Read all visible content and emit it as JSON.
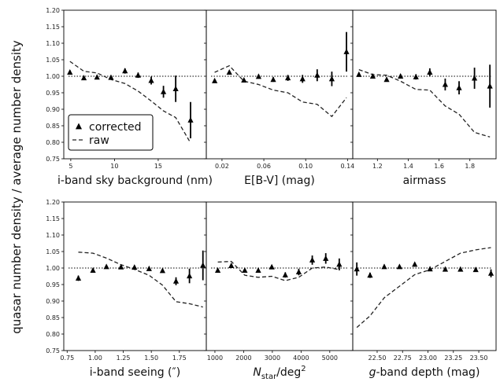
{
  "figure": {
    "ylabel": "quasar number density / average number density",
    "legend": {
      "corrected": "corrected",
      "raw": "raw"
    }
  },
  "chart_data": [
    {
      "id": "p1",
      "type": "scatter",
      "xlabel": "i-band sky background (nm)",
      "xlim": [
        4.2,
        20.5
      ],
      "ylim": [
        0.75,
        1.2
      ],
      "xticks": [
        5,
        10,
        15
      ],
      "grid": false,
      "reference_line": 1.0,
      "series": [
        {
          "name": "corrected",
          "style": "markers-errorbars",
          "x": [
            4.9,
            6.5,
            8.0,
            9.6,
            11.2,
            12.7,
            14.2,
            15.6,
            17.0,
            18.7
          ],
          "y": [
            1.012,
            0.995,
            0.997,
            0.996,
            1.016,
            1.003,
            0.987,
            0.953,
            0.962,
            0.867
          ],
          "err": [
            0.006,
            0.005,
            0.005,
            0.006,
            0.008,
            0.008,
            0.012,
            0.018,
            0.04,
            0.055
          ]
        },
        {
          "name": "raw",
          "style": "dashed",
          "x": [
            4.9,
            6.5,
            8.0,
            9.6,
            11.2,
            12.7,
            14.2,
            15.6,
            17.0,
            18.7
          ],
          "y": [
            1.045,
            1.015,
            1.01,
            0.99,
            0.978,
            0.955,
            0.925,
            0.895,
            0.875,
            0.798
          ]
        }
      ]
    },
    {
      "id": "p2",
      "type": "scatter",
      "xlabel": "E[B-V] (mag)",
      "xlim": [
        0.005,
        0.145
      ],
      "ylim": [
        0.75,
        1.2
      ],
      "xticks": [
        0.02,
        0.06,
        0.1,
        0.14
      ],
      "grid": false,
      "reference_line": 1.0,
      "series": [
        {
          "name": "corrected",
          "style": "markers-errorbars",
          "x": [
            0.013,
            0.027,
            0.041,
            0.055,
            0.069,
            0.083,
            0.097,
            0.111,
            0.125,
            0.139
          ],
          "y": [
            0.986,
            1.012,
            0.988,
            0.999,
            0.99,
            0.995,
            0.992,
            1.003,
            0.992,
            1.074
          ],
          "err": [
            0.005,
            0.005,
            0.005,
            0.006,
            0.007,
            0.009,
            0.012,
            0.018,
            0.022,
            0.06
          ]
        },
        {
          "name": "raw",
          "style": "dashed",
          "x": [
            0.013,
            0.027,
            0.041,
            0.055,
            0.069,
            0.083,
            0.097,
            0.111,
            0.125,
            0.139
          ],
          "y": [
            1.012,
            1.032,
            0.985,
            0.975,
            0.958,
            0.95,
            0.922,
            0.915,
            0.878,
            0.935
          ]
        }
      ]
    },
    {
      "id": "p3",
      "type": "scatter",
      "xlabel": "airmass",
      "xlim": [
        1.04,
        1.97
      ],
      "ylim": [
        0.75,
        1.2
      ],
      "xticks": [
        1.2,
        1.4,
        1.6,
        1.8
      ],
      "grid": false,
      "reference_line": 1.0,
      "series": [
        {
          "name": "corrected",
          "style": "markers-errorbars",
          "x": [
            1.08,
            1.17,
            1.26,
            1.35,
            1.45,
            1.54,
            1.64,
            1.73,
            1.83,
            1.93
          ],
          "y": [
            1.005,
            1.0,
            0.99,
            1.0,
            0.998,
            1.012,
            0.975,
            0.965,
            0.994,
            0.97
          ],
          "err": [
            0.006,
            0.005,
            0.006,
            0.006,
            0.008,
            0.012,
            0.018,
            0.02,
            0.032,
            0.065
          ]
        },
        {
          "name": "raw",
          "style": "dashed",
          "x": [
            1.08,
            1.17,
            1.26,
            1.35,
            1.45,
            1.54,
            1.64,
            1.73,
            1.83,
            1.93
          ],
          "y": [
            1.02,
            1.005,
            1.003,
            0.985,
            0.96,
            0.958,
            0.91,
            0.885,
            0.83,
            0.816
          ]
        }
      ]
    },
    {
      "id": "p4",
      "type": "scatter",
      "xlabel": "i-band seeing (″)",
      "xlim": [
        0.72,
        1.99
      ],
      "ylim": [
        0.75,
        1.2
      ],
      "xticks": [
        0.75,
        1.0,
        1.25,
        1.5,
        1.75
      ],
      "grid": false,
      "reference_line": 1.0,
      "series": [
        {
          "name": "corrected",
          "style": "markers-errorbars",
          "x": [
            0.85,
            0.98,
            1.1,
            1.23,
            1.35,
            1.48,
            1.6,
            1.72,
            1.84,
            1.96
          ],
          "y": [
            0.969,
            0.993,
            1.004,
            1.003,
            1.002,
            0.998,
            0.992,
            0.96,
            0.976,
            1.008
          ],
          "err": [
            0.008,
            0.005,
            0.004,
            0.004,
            0.004,
            0.004,
            0.006,
            0.012,
            0.022,
            0.045
          ]
        },
        {
          "name": "raw",
          "style": "dashed",
          "x": [
            0.85,
            0.98,
            1.1,
            1.23,
            1.35,
            1.48,
            1.6,
            1.72,
            1.84,
            1.96
          ],
          "y": [
            1.048,
            1.045,
            1.03,
            1.01,
            0.996,
            0.978,
            0.948,
            0.898,
            0.892,
            0.882
          ]
        }
      ]
    },
    {
      "id": "p5",
      "type": "scatter",
      "xlabel_parts": [
        "N",
        "star",
        "/deg",
        "2"
      ],
      "xlim": [
        700,
        5800
      ],
      "ylim": [
        0.75,
        1.2
      ],
      "xticks": [
        1000,
        2000,
        3000,
        4000,
        5000
      ],
      "grid": false,
      "reference_line": 1.0,
      "series": [
        {
          "name": "corrected",
          "style": "markers-errorbars",
          "x": [
            1100,
            1570,
            2040,
            2510,
            2980,
            3450,
            3920,
            4390,
            4860,
            5330
          ],
          "y": [
            0.993,
            1.007,
            0.993,
            0.993,
            1.003,
            0.979,
            0.988,
            1.024,
            1.029,
            1.011
          ],
          "err": [
            0.004,
            0.004,
            0.004,
            0.005,
            0.005,
            0.008,
            0.01,
            0.014,
            0.016,
            0.018
          ]
        },
        {
          "name": "raw",
          "style": "dashed",
          "x": [
            1100,
            1570,
            2040,
            2510,
            2980,
            3450,
            3920,
            4390,
            4860,
            5330
          ],
          "y": [
            1.018,
            1.02,
            0.978,
            0.972,
            0.975,
            0.962,
            0.972,
            1.0,
            1.003,
            0.995
          ]
        }
      ]
    },
    {
      "id": "p6",
      "type": "scatter",
      "xlabel_parts": [
        "g",
        "-band depth (mag)"
      ],
      "xlim": [
        22.26,
        23.67
      ],
      "ylim": [
        0.75,
        1.2
      ],
      "xticks": [
        22.5,
        22.75,
        23.0,
        23.25,
        23.5
      ],
      "grid": false,
      "reference_line": 1.0,
      "series": [
        {
          "name": "corrected",
          "style": "markers-errorbars",
          "x": [
            22.3,
            22.43,
            22.57,
            22.72,
            22.87,
            23.02,
            23.17,
            23.32,
            23.47,
            23.62
          ],
          "y": [
            0.997,
            0.978,
            1.004,
            1.004,
            1.011,
            0.997,
            0.996,
            0.996,
            0.995,
            0.984
          ],
          "err": [
            0.02,
            0.008,
            0.006,
            0.005,
            0.005,
            0.004,
            0.004,
            0.005,
            0.006,
            0.012
          ]
        },
        {
          "name": "raw",
          "style": "dashed",
          "x": [
            22.3,
            22.43,
            22.57,
            22.72,
            22.87,
            23.02,
            23.17,
            23.32,
            23.47,
            23.62
          ],
          "y": [
            0.82,
            0.855,
            0.91,
            0.945,
            0.98,
            0.995,
            1.02,
            1.045,
            1.055,
            1.062
          ]
        }
      ]
    }
  ]
}
